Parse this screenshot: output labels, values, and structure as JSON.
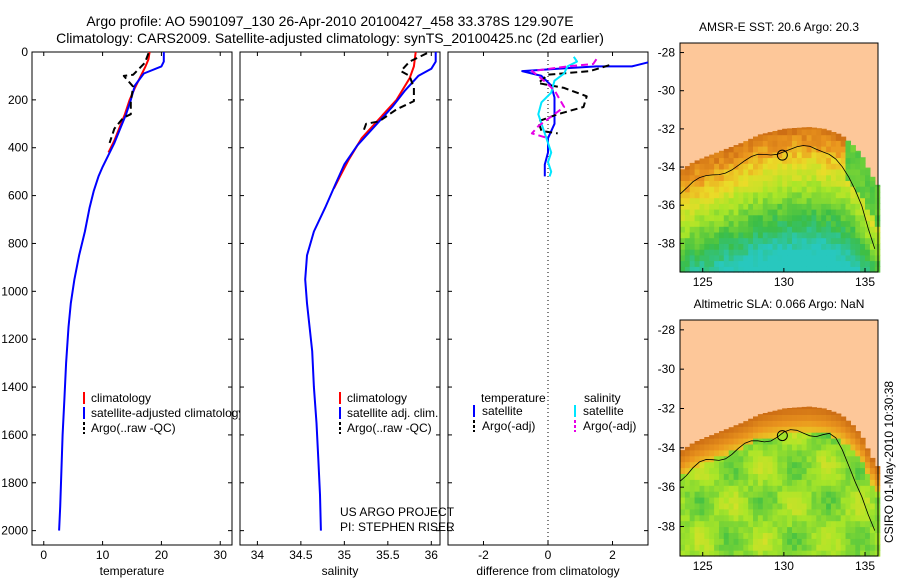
{
  "header": {
    "line1": "Argo profile: AO 5901097_130 26-Apr-2010 20100427_458 33.378S 129.907E",
    "line2": "Climatology: CARS2009. Satellite-adjusted climatology: synTS_20100425.nc (2d earlier)"
  },
  "colors": {
    "climatology": "#ff0000",
    "satellite": "#0000ff",
    "argo": "#000000",
    "satellite_salinity": "#00e6ff",
    "argo_salinity": "#e600e6",
    "land": "#fdc799"
  },
  "footer": {
    "project": "US ARGO PROJECT",
    "pi": "PI: STEPHEN RISER",
    "timestamp": "CSIRO 01-May-2010 10:30:38"
  },
  "chart_data": [
    {
      "id": "temperature",
      "type": "line",
      "xlabel": "temperature",
      "ylabel": "",
      "xlim": [
        -2,
        32
      ],
      "ylim": [
        2060,
        0
      ],
      "xticks": [
        0,
        10,
        20,
        30
      ],
      "yticks": [
        0,
        200,
        400,
        600,
        800,
        1000,
        1200,
        1400,
        1600,
        1800,
        2000
      ],
      "legend": [
        "climatology",
        "satellite-adjusted climatology",
        "Argo(..raw -QC)"
      ],
      "series": [
        {
          "name": "climatology",
          "color": "#ff0000",
          "dash": false,
          "points": [
            [
              18,
              0
            ],
            [
              17.8,
              30
            ],
            [
              17.3,
              60
            ],
            [
              16.5,
              100
            ],
            [
              15.5,
              150
            ],
            [
              14.6,
              200
            ],
            [
              13.8,
              260
            ],
            [
              12.8,
              320
            ],
            [
              12,
              370
            ],
            [
              11,
              420
            ]
          ]
        },
        {
          "name": "satellite-adjusted climatology",
          "color": "#0000ff",
          "dash": false,
          "points": [
            [
              20.4,
              0
            ],
            [
              20.4,
              40
            ],
            [
              20,
              60
            ],
            [
              17,
              90
            ],
            [
              15.5,
              140
            ],
            [
              14.8,
              200
            ],
            [
              14,
              260
            ],
            [
              13,
              320
            ],
            [
              12,
              380
            ],
            [
              11,
              430
            ],
            [
              10,
              480
            ],
            [
              9.3,
              520
            ],
            [
              8.5,
              580
            ],
            [
              7.8,
              650
            ],
            [
              7,
              750
            ],
            [
              6,
              850
            ],
            [
              5.2,
              950
            ],
            [
              4.6,
              1050
            ],
            [
              4.2,
              1150
            ],
            [
              3.8,
              1300
            ],
            [
              3.5,
              1450
            ],
            [
              3.2,
              1600
            ],
            [
              3,
              1750
            ],
            [
              2.8,
              1900
            ],
            [
              2.6,
              2000
            ]
          ]
        },
        {
          "name": "Argo(..raw -QC)",
          "color": "#000000",
          "dash": true,
          "points": [
            [
              17.8,
              5
            ],
            [
              17.2,
              45
            ],
            [
              15.2,
              95
            ],
            [
              13.6,
              100
            ],
            [
              15.2,
              145
            ],
            [
              14.8,
              205
            ],
            [
              14.8,
              260
            ],
            [
              13.5,
              275
            ],
            [
              12,
              320
            ],
            [
              11.2,
              380
            ]
          ]
        }
      ]
    },
    {
      "id": "salinity",
      "type": "line",
      "xlabel": "salinity",
      "ylabel": "",
      "xlim": [
        33.8,
        36.1
      ],
      "ylim": [
        2060,
        0
      ],
      "xticks": [
        34,
        34.5,
        35,
        35.5,
        36
      ],
      "yticks": [
        0,
        200,
        400,
        600,
        800,
        1000,
        1200,
        1400,
        1600,
        1800,
        2000
      ],
      "legend": [
        "climatology",
        "satellite adj. clim.",
        "Argo(..raw -QC)"
      ],
      "series": [
        {
          "name": "climatology",
          "color": "#ff0000",
          "dash": false,
          "points": [
            [
              35.82,
              0
            ],
            [
              35.8,
              60
            ],
            [
              35.75,
              110
            ],
            [
              35.6,
              200
            ],
            [
              35.4,
              280
            ],
            [
              35.2,
              360
            ],
            [
              35.05,
              450
            ],
            [
              34.95,
              520
            ],
            [
              34.88,
              570
            ]
          ]
        },
        {
          "name": "satellite adj. clim.",
          "color": "#0000ff",
          "dash": false,
          "points": [
            [
              36.05,
              0
            ],
            [
              36.05,
              40
            ],
            [
              36,
              70
            ],
            [
              35.85,
              100
            ],
            [
              35.7,
              160
            ],
            [
              35.55,
              230
            ],
            [
              35.35,
              310
            ],
            [
              35.15,
              390
            ],
            [
              35,
              470
            ],
            [
              34.9,
              550
            ],
            [
              34.78,
              650
            ],
            [
              34.65,
              750
            ],
            [
              34.57,
              850
            ],
            [
              34.55,
              950
            ],
            [
              34.57,
              1050
            ],
            [
              34.6,
              1150
            ],
            [
              34.63,
              1250
            ],
            [
              34.65,
              1400
            ],
            [
              34.68,
              1550
            ],
            [
              34.7,
              1700
            ],
            [
              34.72,
              1850
            ],
            [
              34.73,
              2000
            ]
          ]
        },
        {
          "name": "Argo(..raw -QC)",
          "color": "#000000",
          "dash": true,
          "points": [
            [
              35.95,
              5
            ],
            [
              35.75,
              40
            ],
            [
              35.65,
              80
            ],
            [
              35.75,
              100
            ],
            [
              35.8,
              150
            ],
            [
              35.8,
              205
            ],
            [
              35.6,
              240
            ],
            [
              35.4,
              290
            ],
            [
              35.25,
              300
            ],
            [
              35.22,
              330
            ]
          ]
        }
      ]
    },
    {
      "id": "difference",
      "type": "line",
      "xlabel": "difference from climatology",
      "ylabel": "",
      "xlim": [
        -3.1,
        3.1
      ],
      "ylim": [
        2060,
        0
      ],
      "xticks": [
        -2,
        0,
        2
      ],
      "yticks": [
        0,
        200,
        400,
        600,
        800,
        1000,
        1200,
        1400,
        1600,
        1800,
        2000
      ],
      "zero_line": 0,
      "legend": {
        "temperature_heading": "temperature",
        "salinity_heading": "salinity",
        "entries": [
          "satellite",
          "Argo(-adj)",
          "satellite",
          "Argo(-adj)"
        ]
      },
      "series": [
        {
          "name": "temperature satellite",
          "color": "#0000ff",
          "dash": false,
          "points": [
            [
              3.2,
              40
            ],
            [
              2.6,
              60
            ],
            [
              1.5,
              60
            ],
            [
              0.3,
              70
            ],
            [
              -0.8,
              80
            ],
            [
              -0.2,
              100
            ],
            [
              0.1,
              140
            ],
            [
              0.2,
              190
            ],
            [
              0.2,
              240
            ],
            [
              0.2,
              300
            ],
            [
              0,
              360
            ],
            [
              0,
              420
            ],
            [
              -0.1,
              470
            ],
            [
              -0.1,
              520
            ]
          ]
        },
        {
          "name": "temperature Argo(-adj)",
          "color": "#000000",
          "dash": true,
          "points": [
            [
              1.9,
              55
            ],
            [
              1.3,
              80
            ],
            [
              0,
              95
            ],
            [
              -0.3,
              130
            ],
            [
              0.5,
              150
            ],
            [
              1.2,
              185
            ],
            [
              1.1,
              230
            ],
            [
              0.3,
              260
            ],
            [
              -0.3,
              290
            ],
            [
              -0.2,
              330
            ],
            [
              0.3,
              340
            ]
          ]
        },
        {
          "name": "salinity satellite",
          "color": "#00e6ff",
          "dash": false,
          "points": [
            [
              0.8,
              20
            ],
            [
              0.9,
              40
            ],
            [
              0.6,
              60
            ],
            [
              0.5,
              90
            ],
            [
              0.2,
              120
            ],
            [
              0.1,
              170
            ],
            [
              -0.2,
              210
            ],
            [
              -0.3,
              260
            ],
            [
              -0.2,
              300
            ],
            [
              -0.1,
              340
            ],
            [
              0,
              380
            ],
            [
              0.1,
              420
            ],
            [
              0,
              460
            ],
            [
              0.1,
              500
            ],
            [
              0.05,
              520
            ]
          ]
        },
        {
          "name": "salinity Argo(-adj)",
          "color": "#e600e6",
          "dash": true,
          "points": [
            [
              1.5,
              30
            ],
            [
              1.4,
              50
            ],
            [
              0.6,
              60
            ],
            [
              -0.5,
              80
            ],
            [
              -0.3,
              100
            ],
            [
              0.2,
              160
            ],
            [
              0.5,
              230
            ],
            [
              0.1,
              270
            ],
            [
              -0.3,
              310
            ],
            [
              -0.5,
              340
            ],
            [
              0,
              360
            ]
          ]
        }
      ]
    },
    {
      "id": "sst_map",
      "type": "heatmap",
      "title": "AMSR-E SST: 20.6  Argo: 20.3",
      "xlim": [
        123.6,
        135.8
      ],
      "ylim": [
        -39.5,
        -27.5
      ],
      "xticks": [
        125,
        130,
        135
      ],
      "yticks": [
        -28,
        -30,
        -32,
        -34,
        -36,
        -38
      ],
      "marker": {
        "lon": 129.907,
        "lat": -33.378
      }
    },
    {
      "id": "sla_map",
      "type": "heatmap",
      "title": "Altimetric SLA: 0.066  Argo: NaN",
      "xlim": [
        123.6,
        135.8
      ],
      "ylim": [
        -39.5,
        -27.5
      ],
      "xticks": [
        125,
        130,
        135
      ],
      "yticks": [
        -28,
        -30,
        -32,
        -34,
        -36,
        -38
      ],
      "marker": {
        "lon": 129.907,
        "lat": -33.378
      }
    }
  ]
}
